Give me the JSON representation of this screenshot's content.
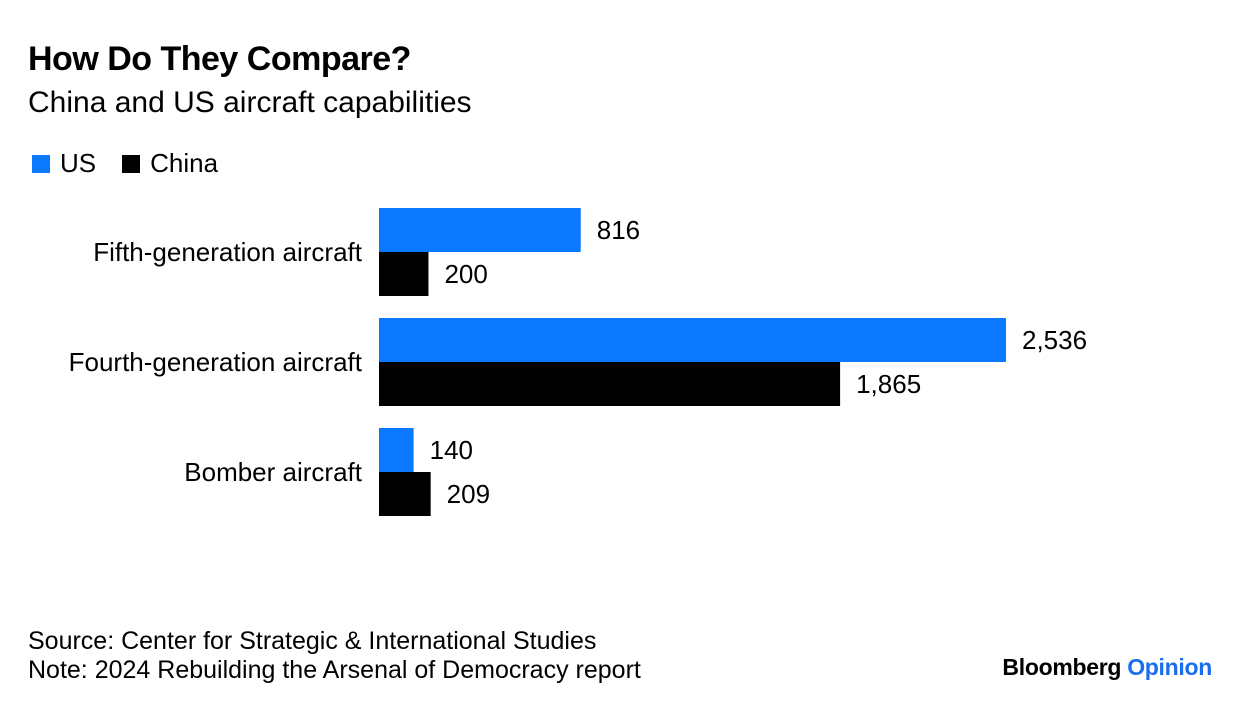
{
  "header": {
    "title": "How Do They Compare?",
    "subtitle": "China and US aircraft capabilities"
  },
  "legend": [
    {
      "label": "US",
      "color": "#0a78ff"
    },
    {
      "label": "China",
      "color": "#000000"
    }
  ],
  "chart_data": {
    "type": "bar",
    "orientation": "horizontal",
    "title": "How Do They Compare?",
    "subtitle": "China and US aircraft capabilities",
    "categories": [
      "Fifth-generation aircraft",
      "Fourth-generation aircraft",
      "Bomber aircraft"
    ],
    "series": [
      {
        "name": "US",
        "color": "#0a78ff",
        "values": [
          816,
          2536,
          140
        ],
        "labels": [
          "816",
          "2,536",
          "140"
        ]
      },
      {
        "name": "China",
        "color": "#000000",
        "values": [
          200,
          1865,
          209
        ],
        "labels": [
          "200",
          "1,865",
          "209"
        ]
      }
    ],
    "xlabel": "",
    "ylabel": "",
    "xlim": [
      0,
      2536
    ],
    "grid": false,
    "legend_position": "top-left"
  },
  "footer": {
    "source": "Source: Center for Strategic & International Studies",
    "note": "Note: 2024 Rebuilding the Arsenal of Democracy report"
  },
  "brand": {
    "name": "Bloomberg",
    "section": "Opinion"
  }
}
